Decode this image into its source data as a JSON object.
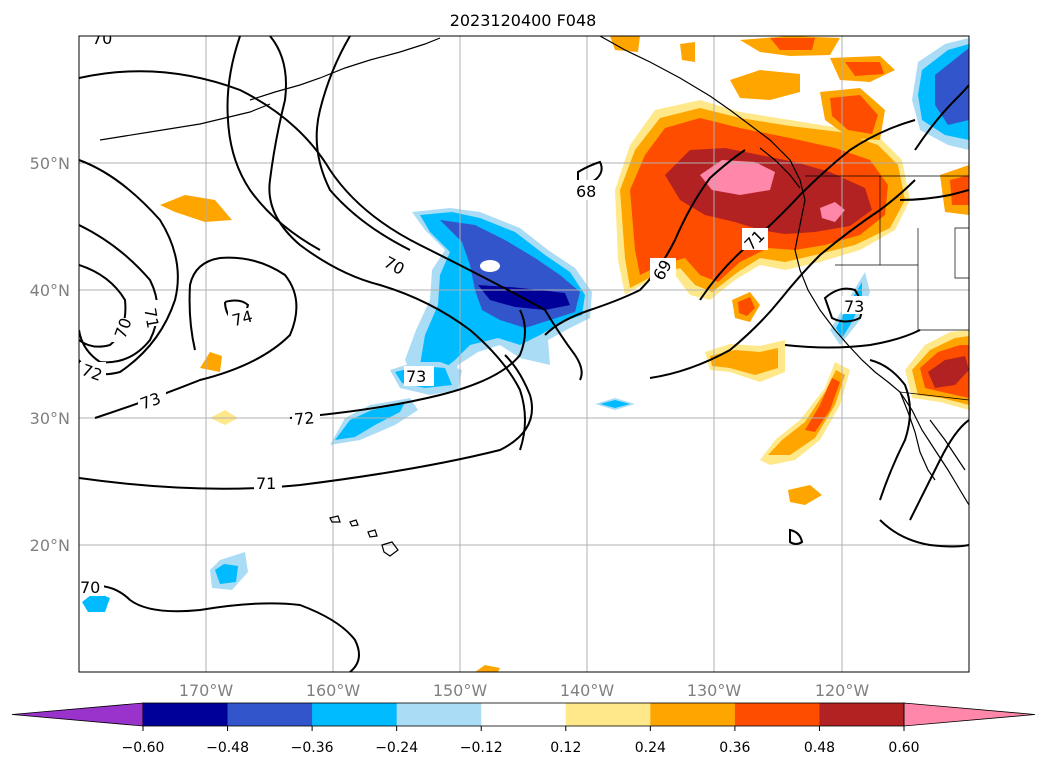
{
  "title": "2023120400 F048",
  "map": {
    "lat_labels": [
      "50°N",
      "40°N",
      "30°N",
      "20°N"
    ],
    "lon_labels": [
      "170°W",
      "160°W",
      "150°W",
      "140°W",
      "130°W",
      "120°W"
    ],
    "contour_labels": [
      "70",
      "71",
      "70",
      "72",
      "73",
      "74",
      "70",
      "68",
      "69",
      "71",
      "73",
      "73",
      "72",
      "71",
      "70"
    ]
  },
  "colorbar": {
    "ticks": [
      "−0.60",
      "−0.48",
      "−0.36",
      "−0.24",
      "−0.12",
      "0.12",
      "0.24",
      "0.36",
      "0.48",
      "0.60"
    ],
    "colors": [
      "#9933cc",
      "#000099",
      "#3355cc",
      "#00bbff",
      "#aaddf5",
      "#ffffff",
      "#ffe88a",
      "#ffa500",
      "#ff4d00",
      "#b22222",
      "#ff88aa"
    ]
  }
}
